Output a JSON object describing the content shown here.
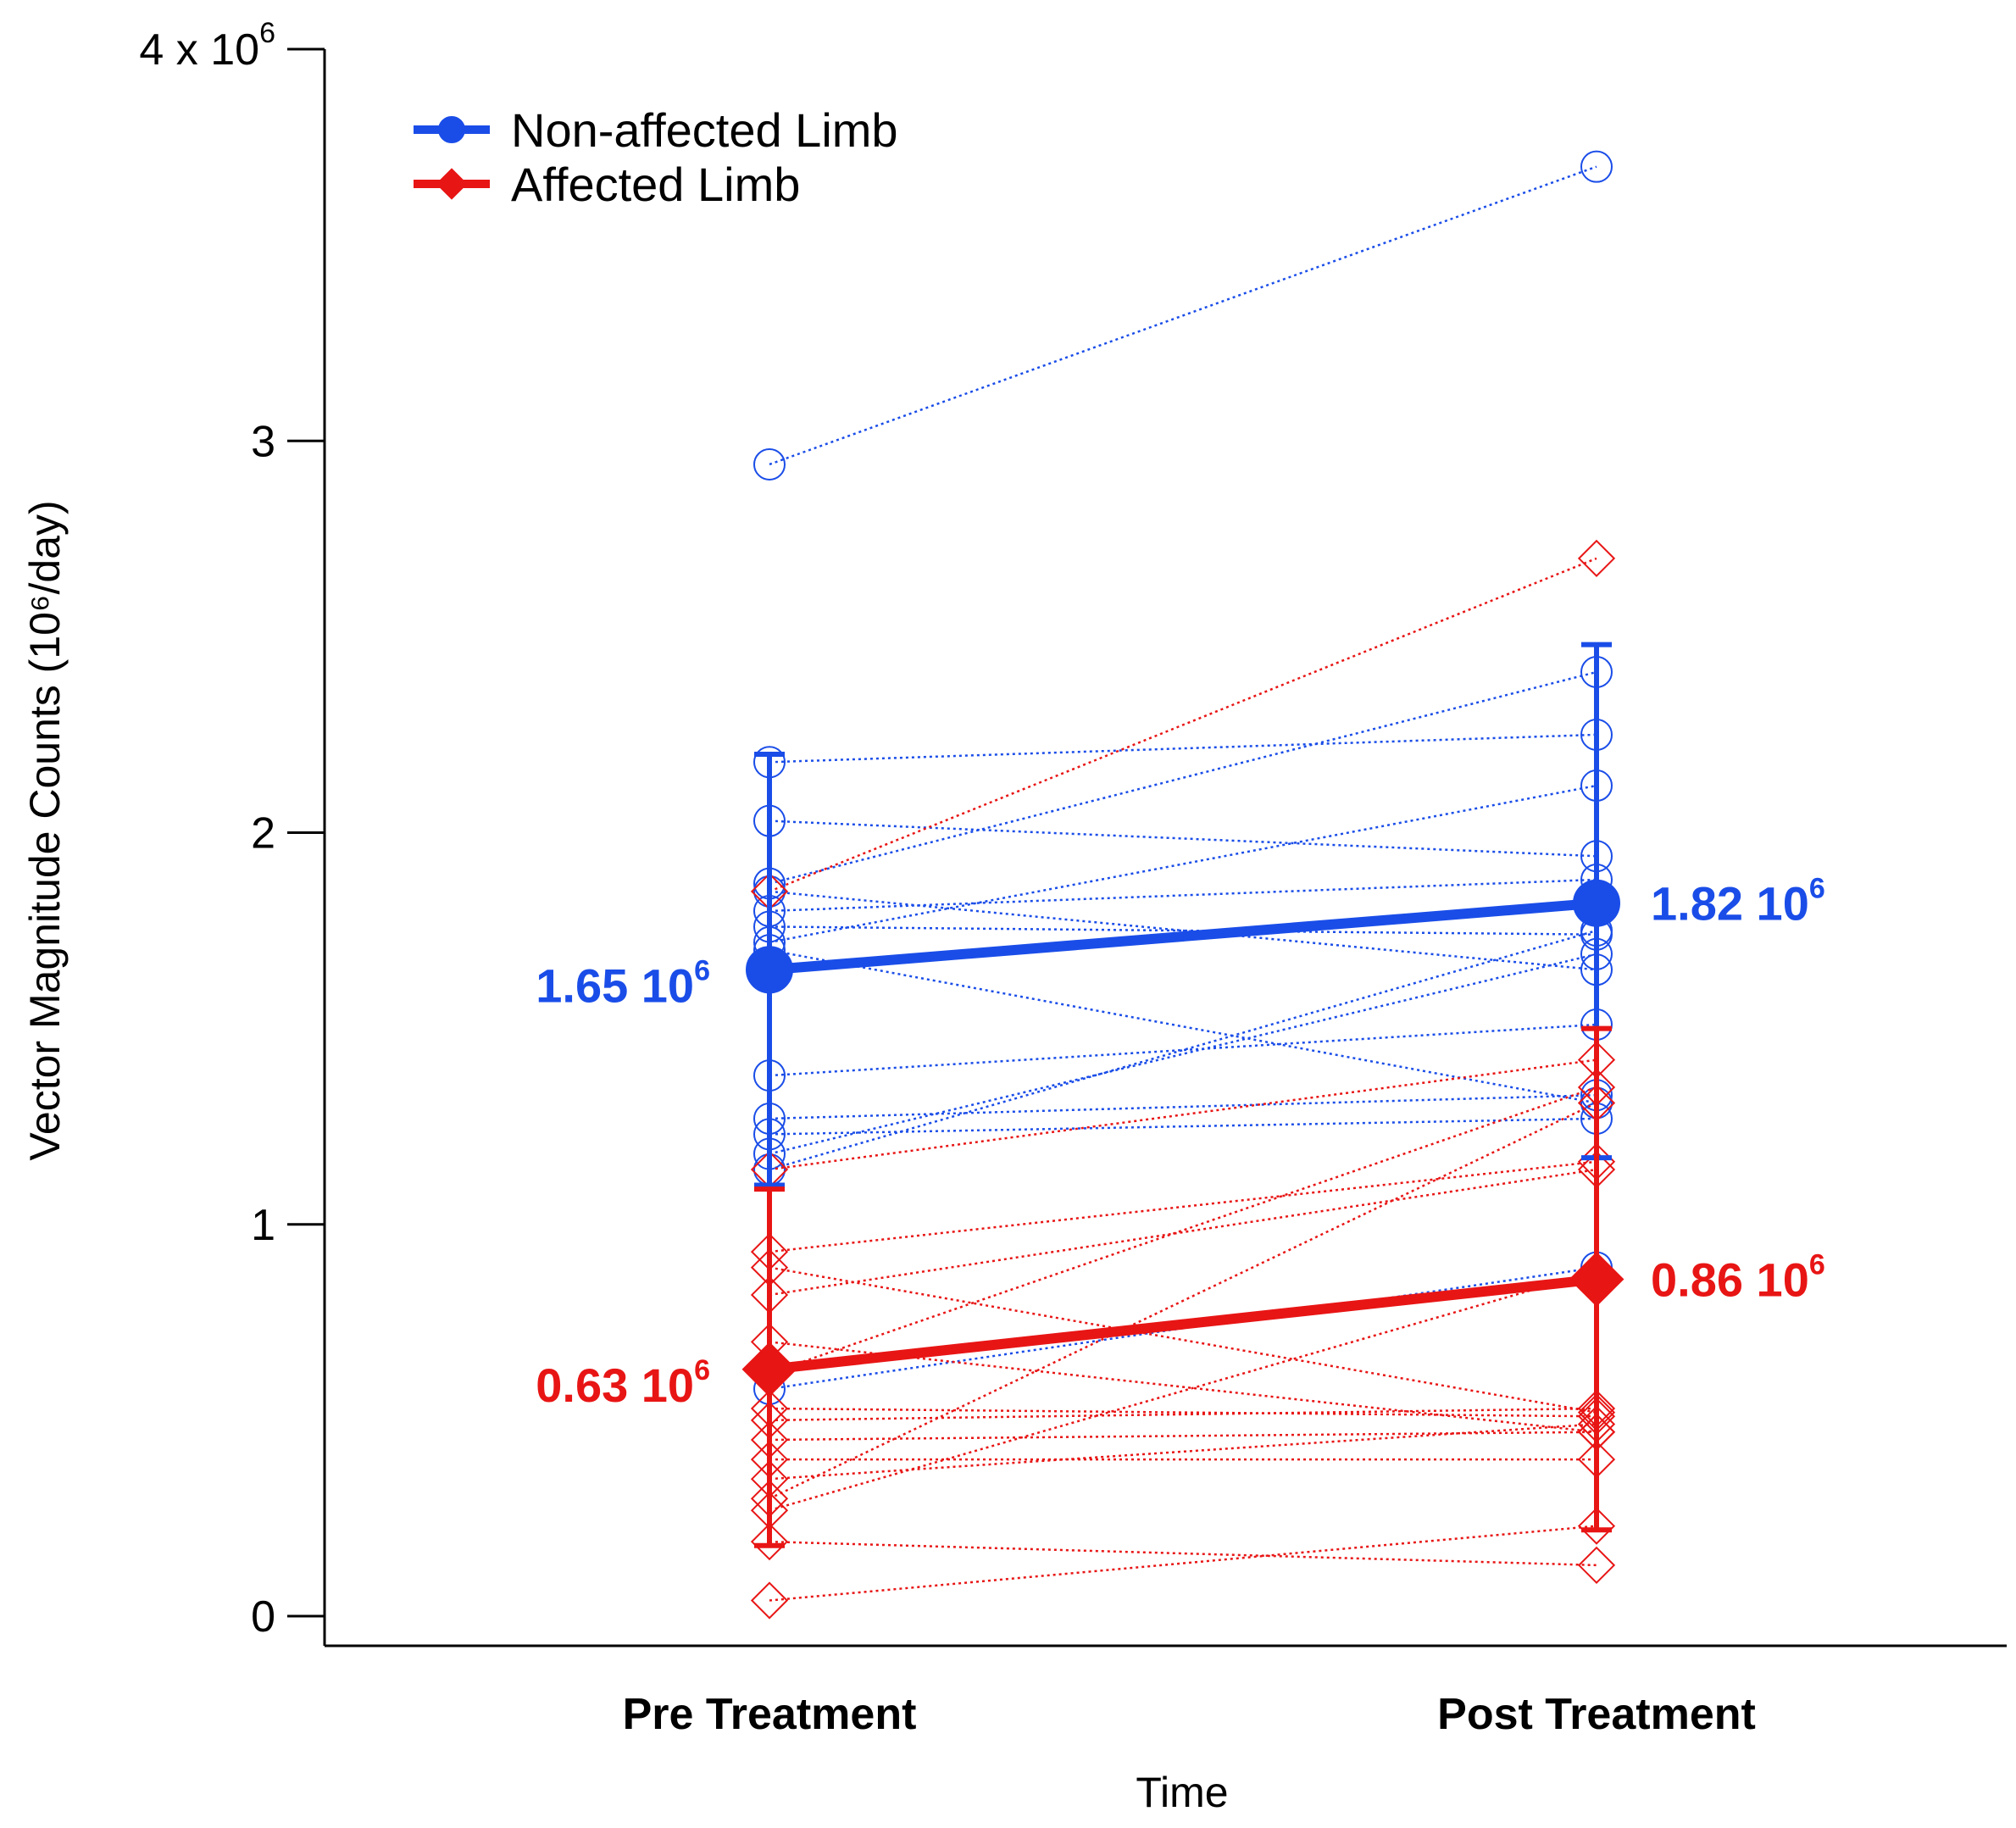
{
  "chart_data": {
    "type": "line",
    "categories": [
      "Pre Treatment",
      "Post Treatment"
    ],
    "xlabel": "Time",
    "ylabel": "Vector Magnitude Counts (10⁶/day)",
    "ylim": [
      0,
      4
    ],
    "yticks": [
      {
        "value": 0,
        "label": "0"
      },
      {
        "value": 1,
        "label": "1"
      },
      {
        "value": 2,
        "label": "2"
      },
      {
        "value": 3,
        "label": "3"
      },
      {
        "value": 4,
        "label": "4 x 10",
        "sup": "6"
      }
    ],
    "grid": false,
    "legend_position": "top-left",
    "series": [
      {
        "name": "Non-affected Limb",
        "color": "#1a4de8",
        "marker": "circle",
        "mean": [
          1.65,
          1.82
        ],
        "mean_labels": [
          {
            "text": "1.65 10",
            "sup": "6"
          },
          {
            "text": "1.82 10",
            "sup": "6"
          }
        ],
        "error": [
          [
            1.1,
            2.2
          ],
          [
            1.17,
            2.48
          ]
        ],
        "individuals": [
          [
            2.94,
            3.7
          ],
          [
            2.18,
            2.25
          ],
          [
            2.03,
            1.94
          ],
          [
            1.87,
            2.41
          ],
          [
            1.85,
            1.65
          ],
          [
            1.8,
            1.88
          ],
          [
            1.76,
            1.74
          ],
          [
            1.72,
            2.12
          ],
          [
            1.7,
            1.31
          ],
          [
            1.38,
            1.51
          ],
          [
            1.27,
            1.33
          ],
          [
            1.23,
            1.27
          ],
          [
            1.18,
            1.69
          ],
          [
            1.14,
            1.75
          ],
          [
            0.58,
            0.89
          ]
        ]
      },
      {
        "name": "Affected Limb",
        "color": "#e81515",
        "marker": "diamond",
        "mean": [
          0.63,
          0.86
        ],
        "mean_labels": [
          {
            "text": "0.63 10",
            "sup": "6"
          },
          {
            "text": "0.86 10",
            "sup": "6"
          }
        ],
        "error": [
          [
            0.18,
            1.09
          ],
          [
            0.22,
            1.5
          ]
        ],
        "individuals": [
          [
            1.85,
            2.7
          ],
          [
            1.14,
            1.42
          ],
          [
            0.93,
            1.16
          ],
          [
            0.89,
            0.52
          ],
          [
            0.82,
            1.14
          ],
          [
            0.7,
            0.47
          ],
          [
            0.62,
            1.35
          ],
          [
            0.53,
            0.51
          ],
          [
            0.5,
            0.53
          ],
          [
            0.45,
            0.47
          ],
          [
            0.4,
            0.4
          ],
          [
            0.35,
            0.49
          ],
          [
            0.3,
            1.31
          ],
          [
            0.27,
            0.88
          ],
          [
            0.19,
            0.13
          ],
          [
            0.04,
            0.23
          ]
        ]
      }
    ]
  }
}
